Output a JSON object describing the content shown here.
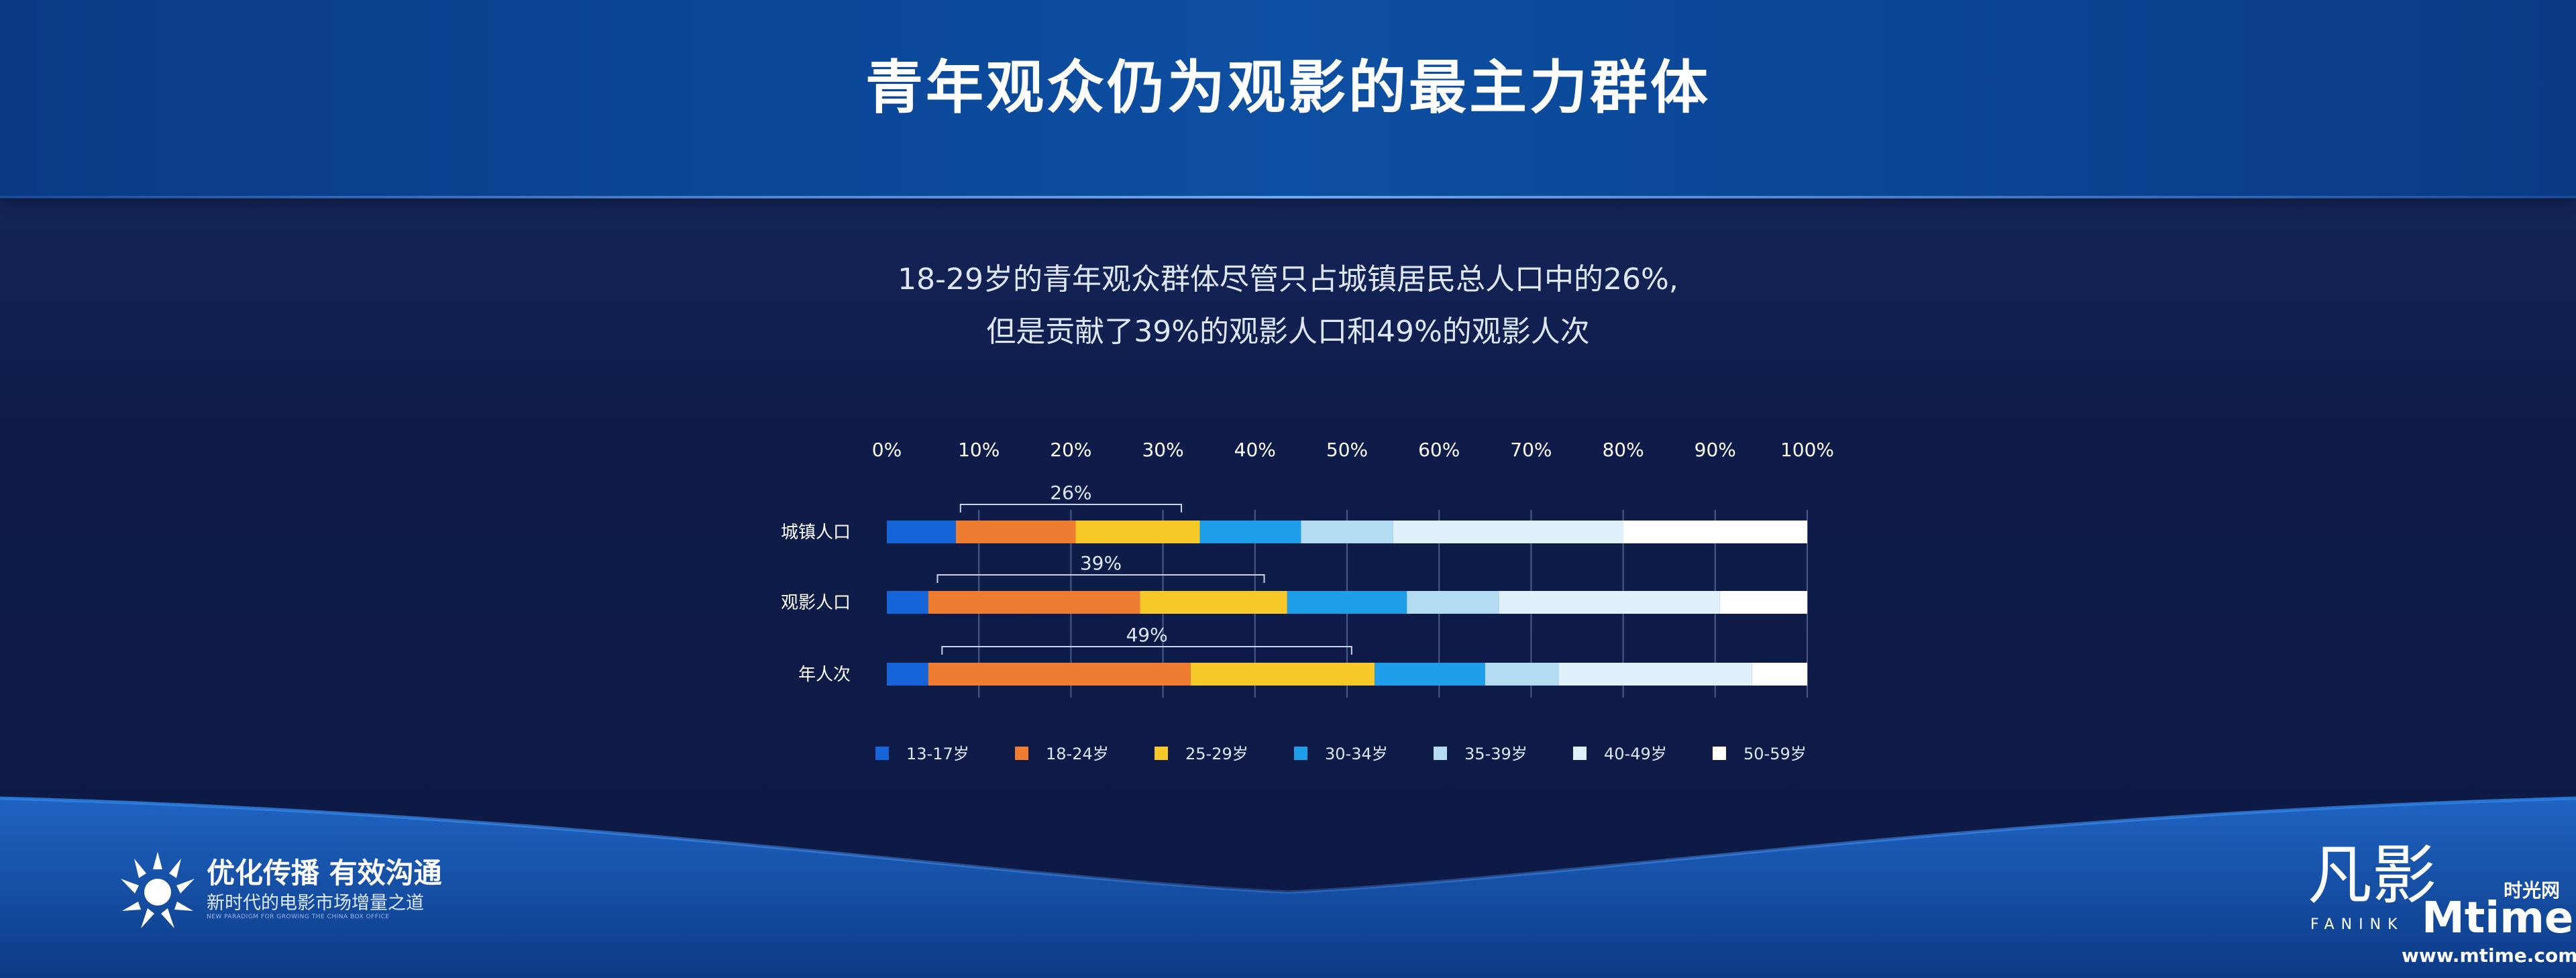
{
  "page": {
    "title": "青年观众仍为观影的最主力群体",
    "subtitle_line1": "18-29岁的青年观众群体尽管只占城镇居民总人口中的26%,",
    "subtitle_line2": "但是贡献了39%的观影人口和49%的观影人次"
  },
  "footer": {
    "slogan_main": "优化传播  有效沟通",
    "slogan_sub": "新时代的电影市场增量之道",
    "slogan_en": "NEW PARADIGM FOR GROWING THE CHINA BOX OFFICE",
    "fanink_mark": "凡影",
    "fanink_text": "FANINK",
    "mtime_cn": "时光网",
    "mtime_logo": "Mtime",
    "mtime_url": "www.mtime.com"
  },
  "colors": {
    "13-17岁": "#1565d8",
    "18-24岁": "#ee7d31",
    "25-29岁": "#f7c928",
    "30-34岁": "#1e9ee8",
    "35-39岁": "#b3dcf3",
    "40-49岁": "#e0f1fb",
    "50-59岁": "#ffffff"
  },
  "chart_data": {
    "type": "bar",
    "orientation": "horizontal",
    "stacked": true,
    "categories": [
      "城镇人口",
      "观影人口",
      "年人次"
    ],
    "xlim": [
      0,
      100
    ],
    "x_tick_labels": [
      "0%",
      "10%",
      "20%",
      "30%",
      "40%",
      "50%",
      "60%",
      "70%",
      "80%",
      "90%",
      "100%"
    ],
    "grid": true,
    "legend_position": "bottom",
    "series": [
      {
        "name": "13-17岁",
        "values": [
          7.5,
          4.5,
          4.5
        ]
      },
      {
        "name": "18-24岁",
        "values": [
          13,
          23,
          28.5
        ]
      },
      {
        "name": "25-29岁",
        "values": [
          13.5,
          16,
          20
        ]
      },
      {
        "name": "30-34岁",
        "values": [
          11,
          13,
          12
        ]
      },
      {
        "name": "35-39岁",
        "values": [
          10,
          10,
          8
        ]
      },
      {
        "name": "40-49岁",
        "values": [
          25,
          24,
          21
        ]
      },
      {
        "name": "50-59岁",
        "values": [
          20,
          9.5,
          6
        ]
      }
    ],
    "annotations": [
      {
        "category": "城镇人口",
        "label": "26%",
        "from": 8,
        "to": 32
      },
      {
        "category": "观影人口",
        "label": "39%",
        "from": 5.5,
        "to": 41
      },
      {
        "category": "年人次",
        "label": "49%",
        "from": 6,
        "to": 50.5
      }
    ]
  }
}
